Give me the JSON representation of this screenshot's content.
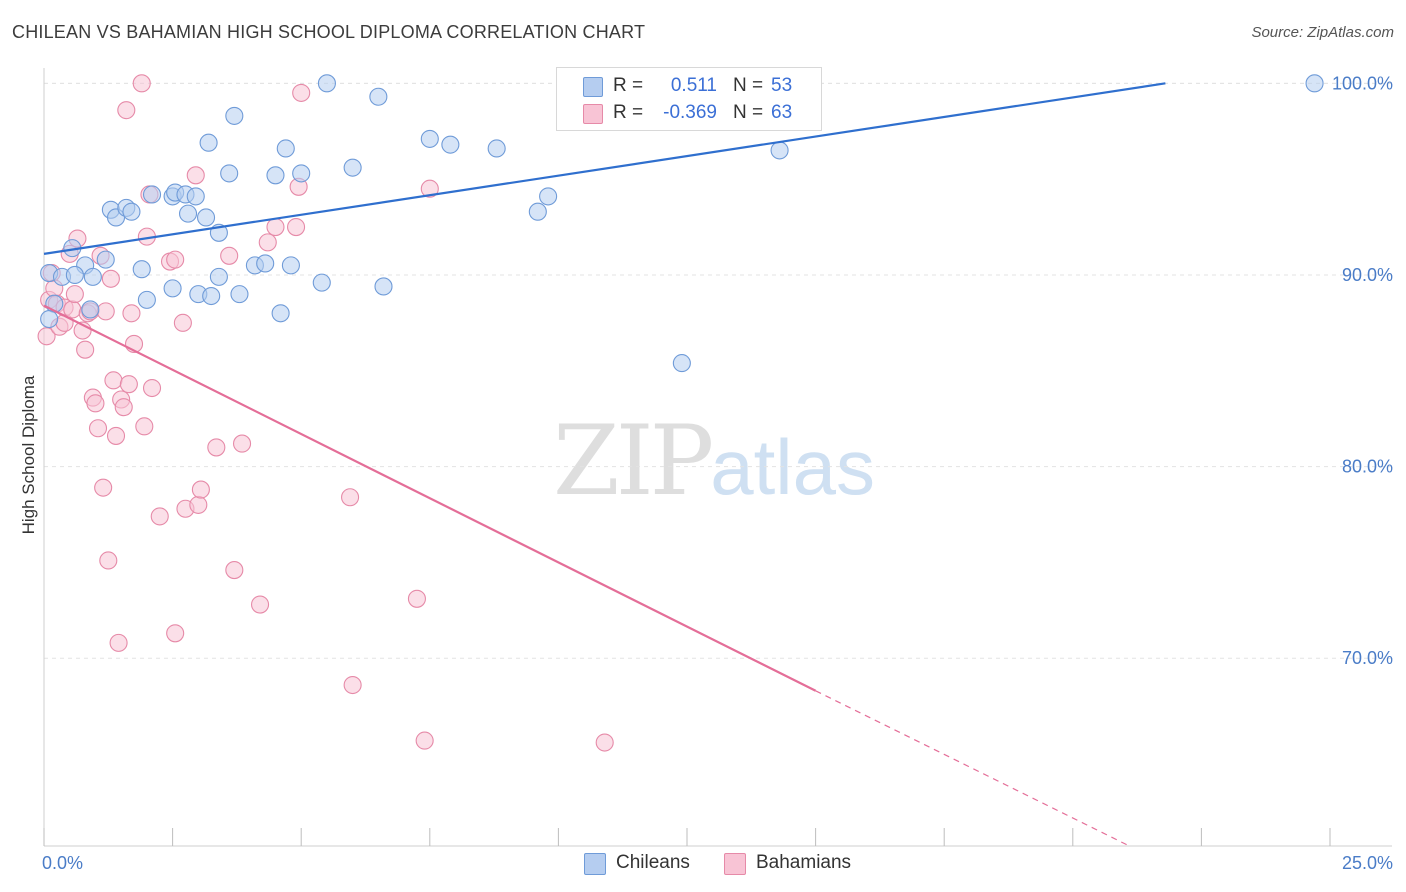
{
  "header": {
    "title": "CHILEAN VS BAHAMIAN HIGH SCHOOL DIPLOMA CORRELATION CHART",
    "source": "Source: ZipAtlas.com"
  },
  "watermark": {
    "zip": "ZIP",
    "atlas": "atlas"
  },
  "legend": {
    "r_label": "R =",
    "n_label": "N =",
    "rows": [
      {
        "r": "0.511",
        "n": "53"
      },
      {
        "r": "-0.369",
        "n": "63"
      }
    ]
  },
  "bottom_legend": [
    "Chileans",
    "Bahamians"
  ],
  "colors": {
    "chileans_fill": "#b5cdf0",
    "chileans_stroke": "#6f9bd8",
    "chileans_line": "#2f6fce",
    "bahamians_fill": "#f8c4d5",
    "bahamians_stroke": "#e68aa8",
    "bahamians_line": "#e46e98",
    "tick_label": "#4a7cc7",
    "grid": "#e3e3e3"
  },
  "chart_data": {
    "type": "scatter",
    "title": "CHILEAN VS BAHAMIAN HIGH SCHOOL DIPLOMA CORRELATION CHART",
    "xlabel": "",
    "ylabel": "High School Diploma",
    "xlim": [
      0,
      25
    ],
    "ylim": [
      60.2,
      100.8
    ],
    "x_tick_labels": [
      "0.0%",
      "25.0%"
    ],
    "y_ticks": [
      70,
      80,
      90,
      100
    ],
    "y_tick_labels": [
      "70.0%",
      "80.0%",
      "90.0%",
      "100.0%"
    ],
    "grid": true,
    "series": [
      {
        "name": "Chileans",
        "r": 0.511,
        "n": 53,
        "trend": {
          "x": [
            0,
            21.8
          ],
          "y": [
            91.1,
            100.0
          ]
        },
        "points": [
          [
            0.1,
            90.1
          ],
          [
            0.2,
            88.5
          ],
          [
            0.1,
            87.7
          ],
          [
            0.35,
            89.9
          ],
          [
            0.55,
            91.4
          ],
          [
            0.8,
            90.5
          ],
          [
            0.95,
            89.9
          ],
          [
            1.2,
            90.8
          ],
          [
            0.6,
            90.0
          ],
          [
            0.9,
            88.2
          ],
          [
            1.3,
            93.4
          ],
          [
            1.4,
            93.0
          ],
          [
            1.6,
            93.5
          ],
          [
            1.7,
            93.3
          ],
          [
            2.0,
            88.7
          ],
          [
            1.9,
            90.3
          ],
          [
            2.1,
            94.2
          ],
          [
            2.5,
            89.3
          ],
          [
            2.5,
            94.1
          ],
          [
            2.55,
            94.3
          ],
          [
            2.75,
            94.2
          ],
          [
            2.8,
            93.2
          ],
          [
            2.95,
            94.1
          ],
          [
            3.0,
            89.0
          ],
          [
            3.15,
            93.0
          ],
          [
            3.2,
            96.9
          ],
          [
            3.25,
            88.9
          ],
          [
            3.4,
            92.2
          ],
          [
            3.4,
            89.9
          ],
          [
            3.6,
            95.3
          ],
          [
            3.7,
            98.3
          ],
          [
            3.8,
            89.0
          ],
          [
            4.1,
            90.5
          ],
          [
            4.3,
            90.6
          ],
          [
            4.5,
            95.2
          ],
          [
            4.6,
            88.0
          ],
          [
            4.7,
            96.6
          ],
          [
            4.8,
            90.5
          ],
          [
            5.0,
            95.3
          ],
          [
            5.4,
            89.6
          ],
          [
            5.5,
            100.0
          ],
          [
            6.0,
            95.6
          ],
          [
            6.5,
            99.3
          ],
          [
            6.6,
            89.4
          ],
          [
            7.5,
            97.1
          ],
          [
            7.9,
            96.8
          ],
          [
            8.8,
            96.6
          ],
          [
            9.6,
            93.3
          ],
          [
            9.8,
            94.1
          ],
          [
            12.4,
            85.4
          ],
          [
            14.0,
            100.0
          ],
          [
            14.3,
            96.5
          ],
          [
            24.7,
            100.0
          ]
        ]
      },
      {
        "name": "Bahamians",
        "r": -0.369,
        "n": 63,
        "trend": {
          "x": [
            0,
            15.0
          ],
          "y": [
            88.4,
            68.3
          ]
        },
        "trend_dashed": {
          "x": [
            15.0,
            21.1
          ],
          "y": [
            68.3,
            60.2
          ]
        },
        "points": [
          [
            0.05,
            86.8
          ],
          [
            0.1,
            88.7
          ],
          [
            0.15,
            90.1
          ],
          [
            0.2,
            89.3
          ],
          [
            0.25,
            88.5
          ],
          [
            0.3,
            87.3
          ],
          [
            0.4,
            87.5
          ],
          [
            0.4,
            88.3
          ],
          [
            0.5,
            91.1
          ],
          [
            0.55,
            88.2
          ],
          [
            0.6,
            89.0
          ],
          [
            0.65,
            91.9
          ],
          [
            0.75,
            87.1
          ],
          [
            0.8,
            86.1
          ],
          [
            0.85,
            88.0
          ],
          [
            0.9,
            88.1
          ],
          [
            0.95,
            83.6
          ],
          [
            1.0,
            83.3
          ],
          [
            1.05,
            82.0
          ],
          [
            1.1,
            91.0
          ],
          [
            1.15,
            78.9
          ],
          [
            1.2,
            88.1
          ],
          [
            1.25,
            75.1
          ],
          [
            1.3,
            89.8
          ],
          [
            1.35,
            84.5
          ],
          [
            1.4,
            81.6
          ],
          [
            1.45,
            70.8
          ],
          [
            1.5,
            83.5
          ],
          [
            1.55,
            83.1
          ],
          [
            1.6,
            98.6
          ],
          [
            1.65,
            84.3
          ],
          [
            1.7,
            88.0
          ],
          [
            1.75,
            86.4
          ],
          [
            1.9,
            100.0
          ],
          [
            1.95,
            82.1
          ],
          [
            2.0,
            92.0
          ],
          [
            2.05,
            94.2
          ],
          [
            2.1,
            84.1
          ],
          [
            2.25,
            77.4
          ],
          [
            2.45,
            90.7
          ],
          [
            2.55,
            90.8
          ],
          [
            2.55,
            71.3
          ],
          [
            2.7,
            87.5
          ],
          [
            2.75,
            77.8
          ],
          [
            2.95,
            95.2
          ],
          [
            3.0,
            78.0
          ],
          [
            3.05,
            78.8
          ],
          [
            3.35,
            81.0
          ],
          [
            3.6,
            91.0
          ],
          [
            3.7,
            74.6
          ],
          [
            3.85,
            81.2
          ],
          [
            4.2,
            72.8
          ],
          [
            4.35,
            91.7
          ],
          [
            4.5,
            92.5
          ],
          [
            4.9,
            92.5
          ],
          [
            4.95,
            94.6
          ],
          [
            5.0,
            99.5
          ],
          [
            5.95,
            78.4
          ],
          [
            6.0,
            68.6
          ],
          [
            7.25,
            73.1
          ],
          [
            7.4,
            65.7
          ],
          [
            7.5,
            94.5
          ],
          [
            10.9,
            65.6
          ]
        ]
      }
    ]
  }
}
